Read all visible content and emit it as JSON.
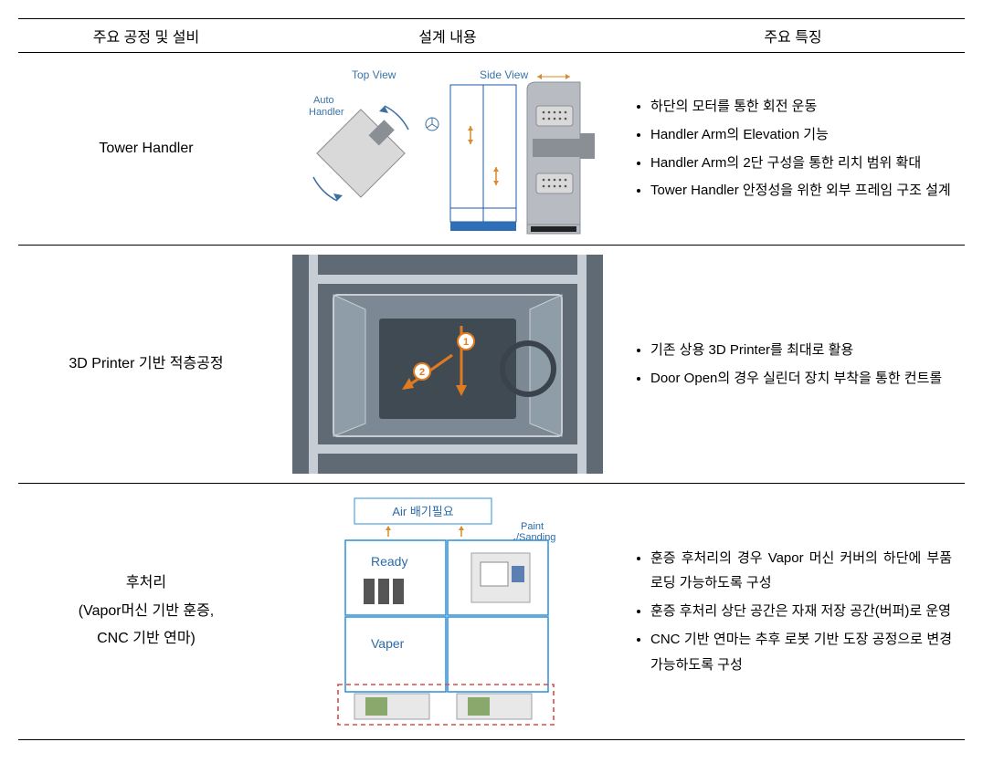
{
  "columns": {
    "c1": "주요 공정 및 설비",
    "c2": "설계 내용",
    "c3": "주요 특징"
  },
  "col_widths": {
    "c1": 280,
    "c2": 380,
    "c3": 376
  },
  "row_heights": {
    "r1": 200,
    "r2": 260,
    "r3": 300
  },
  "rows": {
    "r1": {
      "name": "Tower Handler",
      "features": [
        "하단의 모터를 통한 회전 운동",
        "Handler Arm의 Elevation 기능",
        "Handler Arm의 2단 구성을 통한 리치 범위 확대",
        "Tower Handler 안정성을 위한 외부 프레임 구조 설계"
      ],
      "diagram": {
        "labels": {
          "top": "Top View",
          "side": "Side View",
          "auto": "Auto\nHandler"
        },
        "colors": {
          "label": "#3874a8",
          "line": "#3b6fa0",
          "frame": "#1f5aa6",
          "panel_fill": "#d9d9d9",
          "panel_stroke": "#888888",
          "metal": "#b8bcc2",
          "metal_dark": "#8a8f96",
          "arrow": "#d98b2e",
          "base": "#2e6fb7"
        }
      }
    },
    "r2": {
      "name": "3D Printer 기반 적층공정",
      "features": [
        "기존 상용 3D Printer를 최대로 활용",
        "Door Open의 경우 실린더 장치 부착을 통한 컨트롤"
      ],
      "diagram": {
        "labels": {
          "n1": "1",
          "n2": "2"
        },
        "colors": {
          "bg": "#5f6a74",
          "frame": "#c6cdd4",
          "glass": "rgba(180,195,208,0.35)",
          "inner": "#404a53",
          "arrow": "#e07b1f",
          "marker_fill": "#ffffff",
          "marker_stroke": "#e07b1f"
        }
      }
    },
    "r3": {
      "name_line1": "후처리",
      "name_line2": "(Vapor머신 기반 훈증,",
      "name_line3": "CNC 기반 연마)",
      "features": [
        "훈증 후처리의 경우 Vapor 머신 커버의 하단에 부품 로딩 가능하도록 구성",
        "훈증 후처리 상단 공간은 자재 저장 공간(버퍼)로 운영",
        "CNC 기반 연마는 추후 로봇 기반 도장 공정으로 변경 가능하도록 구성"
      ],
      "diagram": {
        "labels": {
          "air": "Air 배기필요",
          "paint": "Paint\n/Sanding",
          "ready": "Ready",
          "vaper": "Vaper"
        },
        "colors": {
          "box_stroke": "#2f8fd6",
          "box_fill": "#ffffff",
          "text": "#2b6aa8",
          "dash": "#d94b4b",
          "bars": "#555555",
          "mach_fill": "#e8e8e8",
          "mach_stroke": "#9aa1a8",
          "arrow": "#d98b2e"
        }
      }
    }
  }
}
